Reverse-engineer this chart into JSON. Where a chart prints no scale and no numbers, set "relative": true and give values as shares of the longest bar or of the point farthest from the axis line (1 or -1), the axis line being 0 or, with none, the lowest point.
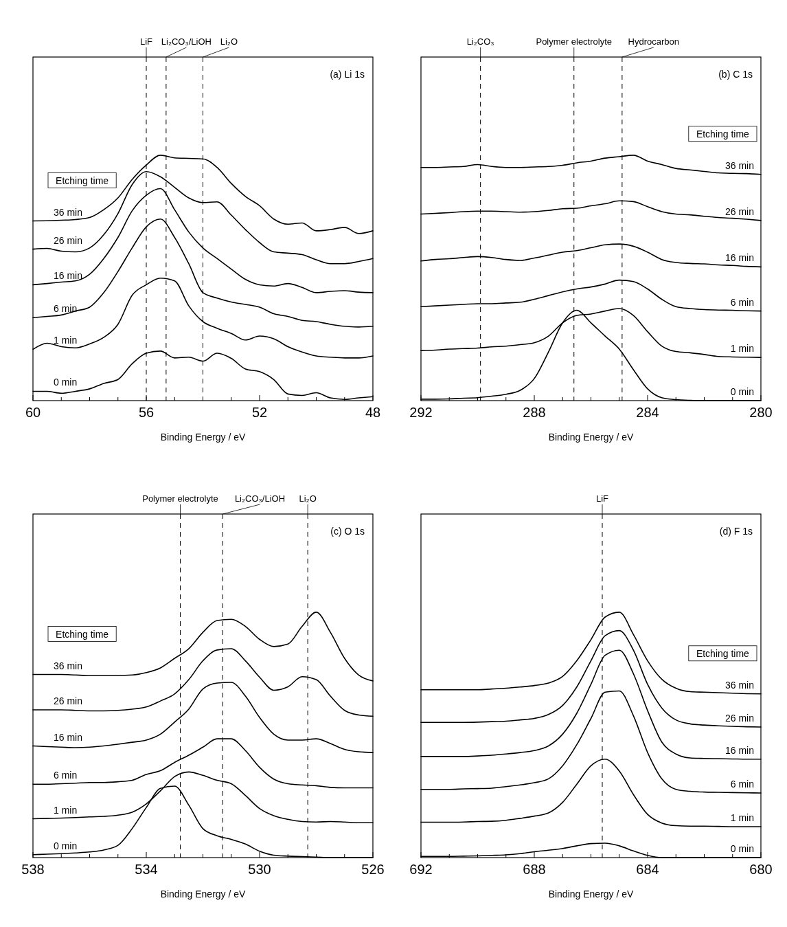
{
  "chart_data": [
    {
      "type": "line",
      "title": "(a) Li 1s",
      "xlabel": "Binding Energy / eV",
      "relative": true,
      "legend": "left",
      "legend_title": "Etching time",
      "x": [
        60,
        59.5,
        59,
        58.5,
        58,
        57.5,
        57,
        56.5,
        56,
        55.5,
        55,
        54.5,
        54,
        53.5,
        53,
        52.5,
        52,
        51.5,
        51,
        50.5,
        50,
        49.5,
        49,
        48.5,
        48
      ],
      "xlim": [
        60,
        48
      ],
      "xticks": [
        60,
        {
          "value": 59,
          "label": null
        },
        {
          "value": 58,
          "label": null
        },
        {
          "value": 57,
          "label": null
        },
        56,
        {
          "value": 55,
          "label": null
        },
        {
          "value": 54,
          "label": null
        },
        {
          "value": 53,
          "label": null
        },
        52,
        {
          "value": 51,
          "label": null
        },
        {
          "value": 50,
          "label": null
        },
        {
          "value": 49,
          "label": null
        },
        48
      ],
      "ref_lines": [
        {
          "axis": "x",
          "value": 56,
          "label": "LiF",
          "line_style": "dashed"
        },
        {
          "axis": "x",
          "value": 55.3,
          "label": "Li₂CO₃/LiOH",
          "line_style": "dashed"
        },
        {
          "axis": "x",
          "value": 54,
          "label": "Li₂O",
          "line_style": "dashed"
        }
      ],
      "series": [
        {
          "name": "36 min",
          "color": "#000000",
          "values": [
            0.732,
            0.733,
            0.735,
            0.738,
            0.746,
            0.778,
            0.826,
            0.901,
            0.96,
            1.0,
            0.989,
            0.987,
            0.985,
            0.95,
            0.885,
            0.832,
            0.794,
            0.74,
            0.719,
            0.724,
            0.692,
            0.697,
            0.706,
            0.681,
            0.692
          ]
        },
        {
          "name": "26 min",
          "color": "#000000",
          "values": [
            0.617,
            0.62,
            0.609,
            0.606,
            0.622,
            0.676,
            0.762,
            0.88,
            0.933,
            0.912,
            0.869,
            0.826,
            0.807,
            0.81,
            0.756,
            0.697,
            0.644,
            0.606,
            0.601,
            0.595,
            0.574,
            0.558,
            0.558,
            0.567,
            0.579
          ]
        },
        {
          "name": "16 min",
          "color": "#000000",
          "values": [
            0.472,
            0.477,
            0.483,
            0.488,
            0.515,
            0.579,
            0.665,
            0.773,
            0.837,
            0.864,
            0.778,
            0.687,
            0.622,
            0.579,
            0.536,
            0.494,
            0.472,
            0.467,
            0.477,
            0.461,
            0.44,
            0.445,
            0.448,
            0.442,
            0.44
          ]
        },
        {
          "name": "6 min",
          "color": "#000000",
          "values": [
            0.338,
            0.343,
            0.349,
            0.365,
            0.381,
            0.44,
            0.526,
            0.622,
            0.708,
            0.74,
            0.665,
            0.558,
            0.44,
            0.418,
            0.402,
            0.392,
            0.381,
            0.354,
            0.343,
            0.327,
            0.322,
            0.311,
            0.303,
            0.3,
            0.303
          ]
        },
        {
          "name": "1 min",
          "color": "#000000",
          "values": [
            0.209,
            0.234,
            0.22,
            0.215,
            0.231,
            0.258,
            0.311,
            0.429,
            0.472,
            0.499,
            0.488,
            0.386,
            0.322,
            0.295,
            0.274,
            0.247,
            0.263,
            0.252,
            0.22,
            0.198,
            0.182,
            0.177,
            0.174,
            0.174,
            0.182
          ]
        },
        {
          "name": "0 min",
          "color": "#000000",
          "values": [
            0.038,
            0.038,
            0.03,
            0.038,
            0.048,
            0.07,
            0.086,
            0.15,
            0.193,
            0.202,
            0.174,
            0.177,
            0.161,
            0.193,
            0.172,
            0.129,
            0.118,
            0.086,
            0.027,
            0.021,
            0.032,
            0.011,
            0.005,
            0.011,
            0.016
          ]
        }
      ]
    },
    {
      "type": "line",
      "title": "(b) C 1s",
      "xlabel": "Binding Energy / eV",
      "relative": true,
      "legend": "right",
      "legend_title": "Etching time",
      "x": [
        292,
        291.5,
        291,
        290.5,
        290,
        289.5,
        289,
        288.5,
        288,
        287.5,
        287,
        286.5,
        286,
        285.5,
        285,
        284.5,
        284,
        283.5,
        283,
        282.5,
        282,
        281.5,
        281,
        280.5,
        280
      ],
      "xlim": [
        292,
        280
      ],
      "xticks": [
        292,
        {
          "value": 291,
          "label": null
        },
        {
          "value": 290,
          "label": null
        },
        {
          "value": 289,
          "label": null
        },
        288,
        {
          "value": 287,
          "label": null
        },
        {
          "value": 286,
          "label": null
        },
        {
          "value": 285,
          "label": null
        },
        284,
        {
          "value": 283,
          "label": null
        },
        {
          "value": 282,
          "label": null
        },
        {
          "value": 281,
          "label": null
        },
        280
      ],
      "ref_lines": [
        {
          "axis": "x",
          "value": 289.9,
          "label": "Li₂CO₃",
          "line_style": "dashed"
        },
        {
          "axis": "x",
          "value": 286.6,
          "label": "Polymer electrolyte",
          "line_style": "dashed"
        },
        {
          "axis": "x",
          "value": 284.9,
          "label": "Hydrocarbon",
          "line_style": "dashed"
        }
      ],
      "series": [
        {
          "name": "36 min",
          "color": "#000000",
          "values": [
            0.95,
            0.95,
            0.952,
            0.954,
            0.962,
            0.954,
            0.95,
            0.95,
            0.952,
            0.954,
            0.959,
            0.969,
            0.976,
            0.988,
            0.994,
            1.0,
            0.976,
            0.962,
            0.946,
            0.94,
            0.934,
            0.928,
            0.926,
            0.925,
            0.922
          ]
        },
        {
          "name": "26 min",
          "color": "#000000",
          "values": [
            0.76,
            0.763,
            0.766,
            0.77,
            0.772,
            0.772,
            0.77,
            0.768,
            0.77,
            0.775,
            0.782,
            0.784,
            0.794,
            0.802,
            0.814,
            0.811,
            0.79,
            0.77,
            0.76,
            0.757,
            0.751,
            0.746,
            0.743,
            0.739,
            0.734
          ]
        },
        {
          "name": "16 min",
          "color": "#000000",
          "values": [
            0.569,
            0.575,
            0.578,
            0.583,
            0.587,
            0.583,
            0.575,
            0.571,
            0.581,
            0.593,
            0.605,
            0.611,
            0.623,
            0.635,
            0.638,
            0.629,
            0.605,
            0.575,
            0.563,
            0.559,
            0.557,
            0.553,
            0.551,
            0.547,
            0.545
          ]
        },
        {
          "name": "6 min",
          "color": "#000000",
          "values": [
            0.383,
            0.386,
            0.389,
            0.392,
            0.395,
            0.395,
            0.398,
            0.401,
            0.413,
            0.428,
            0.443,
            0.455,
            0.463,
            0.475,
            0.491,
            0.485,
            0.455,
            0.413,
            0.383,
            0.375,
            0.371,
            0.369,
            0.368,
            0.366,
            0.365
          ]
        },
        {
          "name": "1 min",
          "color": "#000000",
          "values": [
            0.204,
            0.206,
            0.21,
            0.212,
            0.214,
            0.219,
            0.222,
            0.228,
            0.236,
            0.263,
            0.317,
            0.347,
            0.353,
            0.365,
            0.375,
            0.347,
            0.281,
            0.222,
            0.2,
            0.195,
            0.188,
            0.18,
            0.178,
            0.177,
            0.176
          ]
        },
        {
          "name": "0 min",
          "color": "#000000",
          "values": [
            0.006,
            0.006,
            0.007,
            0.01,
            0.012,
            0.018,
            0.026,
            0.042,
            0.09,
            0.198,
            0.317,
            0.368,
            0.317,
            0.263,
            0.21,
            0.126,
            0.048,
            0.012,
            0.004,
            0.001,
            0,
            0,
            0,
            0,
            0
          ]
        }
      ]
    },
    {
      "type": "line",
      "title": "(c) O 1s",
      "xlabel": "Binding Energy / eV",
      "relative": true,
      "legend": "left",
      "legend_title": "Etching time",
      "x": [
        538,
        537.5,
        537,
        536.5,
        536,
        535.5,
        535,
        534.5,
        534,
        533.5,
        533,
        532.5,
        532,
        531.5,
        531,
        530.5,
        530,
        529.5,
        529,
        528.5,
        528,
        527.5,
        527,
        526.5,
        526
      ],
      "xlim": [
        538,
        526
      ],
      "xticks": [
        538,
        {
          "value": 537,
          "label": null
        },
        {
          "value": 536,
          "label": null
        },
        {
          "value": 535,
          "label": null
        },
        534,
        {
          "value": 533,
          "label": null
        },
        {
          "value": 532,
          "label": null
        },
        {
          "value": 531,
          "label": null
        },
        530,
        {
          "value": 529,
          "label": null
        },
        {
          "value": 528,
          "label": null
        },
        {
          "value": 527,
          "label": null
        },
        526
      ],
      "ref_lines": [
        {
          "axis": "x",
          "value": 532.8,
          "label": "Polymer electrolyte",
          "line_style": "dashed"
        },
        {
          "axis": "x",
          "value": 531.3,
          "label": "Li₂CO₃/LiOH",
          "line_style": "dashed"
        },
        {
          "axis": "x",
          "value": 528.3,
          "label": "Li₂O",
          "line_style": "dashed"
        }
      ],
      "series": [
        {
          "name": "36 min",
          "color": "#000000",
          "values": [
            0.746,
            0.746,
            0.746,
            0.744,
            0.742,
            0.742,
            0.742,
            0.744,
            0.754,
            0.773,
            0.812,
            0.851,
            0.918,
            0.966,
            0.971,
            0.942,
            0.889,
            0.86,
            0.87,
            0.942,
            1.0,
            0.918,
            0.812,
            0.744,
            0.72
          ]
        },
        {
          "name": "26 min",
          "color": "#000000",
          "values": [
            0.602,
            0.602,
            0.602,
            0.6,
            0.598,
            0.598,
            0.6,
            0.605,
            0.614,
            0.638,
            0.667,
            0.725,
            0.802,
            0.846,
            0.851,
            0.802,
            0.735,
            0.682,
            0.696,
            0.737,
            0.725,
            0.658,
            0.6,
            0.581,
            0.576
          ]
        },
        {
          "name": "16 min",
          "color": "#000000",
          "values": [
            0.455,
            0.452,
            0.45,
            0.448,
            0.45,
            0.455,
            0.462,
            0.47,
            0.479,
            0.503,
            0.552,
            0.605,
            0.687,
            0.711,
            0.714,
            0.658,
            0.571,
            0.503,
            0.479,
            0.479,
            0.484,
            0.465,
            0.441,
            0.431,
            0.428
          ]
        },
        {
          "name": "6 min",
          "color": "#000000",
          "values": [
            0.299,
            0.299,
            0.301,
            0.303,
            0.306,
            0.306,
            0.309,
            0.315,
            0.339,
            0.354,
            0.388,
            0.417,
            0.45,
            0.484,
            0.484,
            0.436,
            0.368,
            0.32,
            0.301,
            0.296,
            0.293,
            0.286,
            0.284,
            0.284,
            0.284
          ]
        },
        {
          "name": "1 min",
          "color": "#000000",
          "values": [
            0.158,
            0.16,
            0.161,
            0.163,
            0.166,
            0.168,
            0.173,
            0.185,
            0.219,
            0.272,
            0.33,
            0.349,
            0.335,
            0.315,
            0.301,
            0.253,
            0.2,
            0.171,
            0.156,
            0.147,
            0.145,
            0.147,
            0.145,
            0.142,
            0.142
          ]
        },
        {
          "name": "0 min",
          "color": "#000000",
          "values": [
            0.012,
            0.014,
            0.016,
            0.019,
            0.023,
            0.031,
            0.05,
            0.118,
            0.204,
            0.282,
            0.291,
            0.214,
            0.118,
            0.089,
            0.074,
            0.055,
            0.026,
            0.01,
            0.006,
            0.004,
            0.002,
            0,
            0,
            0,
            0
          ]
        }
      ]
    },
    {
      "type": "line",
      "title": "(d) F 1s",
      "xlabel": "Binding Energy / eV",
      "relative": true,
      "legend": "right",
      "legend_title": "Etching time",
      "x": [
        692,
        691.5,
        691,
        690.5,
        690,
        689.5,
        689,
        688.5,
        688,
        687.5,
        687,
        686.5,
        686,
        685.5,
        685,
        684.5,
        684,
        683.5,
        683,
        682.5,
        682,
        681.5,
        681,
        680.5,
        680
      ],
      "xlim": [
        692,
        680
      ],
      "xticks": [
        692,
        {
          "value": 691,
          "label": null
        },
        {
          "value": 690,
          "label": null
        },
        {
          "value": 689,
          "label": null
        },
        688,
        {
          "value": 687,
          "label": null
        },
        {
          "value": 686,
          "label": null
        },
        {
          "value": 685,
          "label": null
        },
        684,
        {
          "value": 683,
          "label": null
        },
        {
          "value": 682,
          "label": null
        },
        {
          "value": 681,
          "label": null
        },
        680
      ],
      "ref_lines": [
        {
          "axis": "x",
          "value": 685.6,
          "label": "LiF",
          "line_style": "dashed"
        }
      ],
      "series": [
        {
          "name": "36 min",
          "color": "#000000",
          "values": [
            0.684,
            0.684,
            0.684,
            0.684,
            0.684,
            0.687,
            0.69,
            0.695,
            0.701,
            0.711,
            0.738,
            0.802,
            0.888,
            0.98,
            1.0,
            0.909,
            0.802,
            0.727,
            0.69,
            0.676,
            0.674,
            0.672,
            0.67,
            0.668,
            0.667
          ]
        },
        {
          "name": "26 min",
          "color": "#000000",
          "values": [
            0.551,
            0.551,
            0.551,
            0.551,
            0.552,
            0.554,
            0.556,
            0.561,
            0.567,
            0.583,
            0.62,
            0.695,
            0.802,
            0.904,
            0.925,
            0.845,
            0.706,
            0.61,
            0.561,
            0.545,
            0.54,
            0.537,
            0.535,
            0.533,
            0.532
          ]
        },
        {
          "name": "16 min",
          "color": "#000000",
          "values": [
            0.412,
            0.412,
            0.412,
            0.412,
            0.414,
            0.417,
            0.422,
            0.428,
            0.436,
            0.455,
            0.503,
            0.588,
            0.706,
            0.824,
            0.845,
            0.749,
            0.599,
            0.471,
            0.422,
            0.406,
            0.404,
            0.403,
            0.402,
            0.401,
            0.401
          ]
        },
        {
          "name": "6 min",
          "color": "#000000",
          "values": [
            0.278,
            0.278,
            0.278,
            0.28,
            0.281,
            0.283,
            0.289,
            0.296,
            0.305,
            0.321,
            0.374,
            0.46,
            0.567,
            0.674,
            0.679,
            0.578,
            0.428,
            0.321,
            0.278,
            0.27,
            0.267,
            0.266,
            0.265,
            0.264,
            0.263
          ]
        },
        {
          "name": "1 min",
          "color": "#000000",
          "values": [
            0.144,
            0.144,
            0.144,
            0.145,
            0.147,
            0.148,
            0.152,
            0.16,
            0.169,
            0.182,
            0.225,
            0.299,
            0.374,
            0.401,
            0.353,
            0.257,
            0.176,
            0.141,
            0.13,
            0.128,
            0.128,
            0.127,
            0.126,
            0.126,
            0.126
          ]
        },
        {
          "name": "0 min",
          "color": "#000000",
          "values": [
            0.005,
            0.005,
            0.005,
            0.006,
            0.007,
            0.009,
            0.011,
            0.016,
            0.024,
            0.03,
            0.037,
            0.048,
            0.057,
            0.059,
            0.048,
            0.027,
            0.009,
            0,
            0,
            0,
            0,
            0,
            0,
            0,
            0
          ]
        }
      ]
    }
  ]
}
